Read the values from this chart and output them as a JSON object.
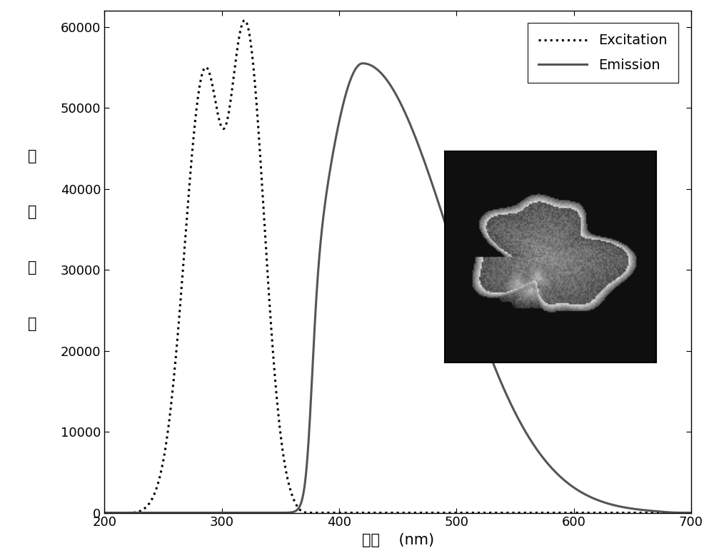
{
  "xlim": [
    200,
    700
  ],
  "ylim": [
    0,
    62000
  ],
  "xticks": [
    200,
    300,
    400,
    500,
    600,
    700
  ],
  "yticks": [
    0,
    10000,
    20000,
    30000,
    40000,
    50000,
    60000
  ],
  "xlabel": "波长    (nm)",
  "ylabel_chars": [
    "发",
    "光",
    "强",
    "度"
  ],
  "excitation_color": "#000000",
  "emission_color": "#555555",
  "legend_excitation": "Excitation",
  "legend_emission": "Emission",
  "background_color": "#ffffff",
  "ylabel_fontsize": 15,
  "xlabel_fontsize": 15,
  "tick_fontsize": 13,
  "legend_fontsize": 14
}
